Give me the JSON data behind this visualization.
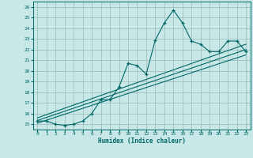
{
  "title": "",
  "xlabel": "Humidex (Indice chaleur)",
  "background_color": "#c8e8e8",
  "grid_color": "#9ababa",
  "line_color": "#006666",
  "xlim": [
    -0.5,
    23.5
  ],
  "ylim": [
    14.5,
    26.5
  ],
  "xticks": [
    0,
    1,
    2,
    3,
    4,
    5,
    6,
    7,
    8,
    9,
    10,
    11,
    12,
    13,
    14,
    15,
    16,
    17,
    18,
    19,
    20,
    21,
    22,
    23
  ],
  "yticks": [
    15,
    16,
    17,
    18,
    19,
    20,
    21,
    22,
    23,
    24,
    25,
    26
  ],
  "line1_x": [
    0,
    1,
    2,
    3,
    4,
    5,
    6,
    7,
    8,
    9,
    10,
    11,
    12,
    13,
    14,
    15,
    16,
    17,
    18,
    19,
    20,
    21,
    22,
    23
  ],
  "line1_y": [
    15.3,
    15.3,
    15.0,
    14.9,
    15.0,
    15.3,
    16.0,
    17.3,
    17.3,
    18.5,
    20.7,
    20.5,
    19.7,
    22.9,
    24.5,
    25.7,
    24.5,
    22.8,
    22.5,
    21.8,
    21.8,
    22.8,
    22.8,
    21.8
  ],
  "line2_x": [
    0,
    23
  ],
  "line2_y": [
    15.1,
    21.5
  ],
  "line3_x": [
    0,
    23
  ],
  "line3_y": [
    15.35,
    22.0
  ],
  "line4_x": [
    0,
    23
  ],
  "line4_y": [
    15.6,
    22.5
  ]
}
